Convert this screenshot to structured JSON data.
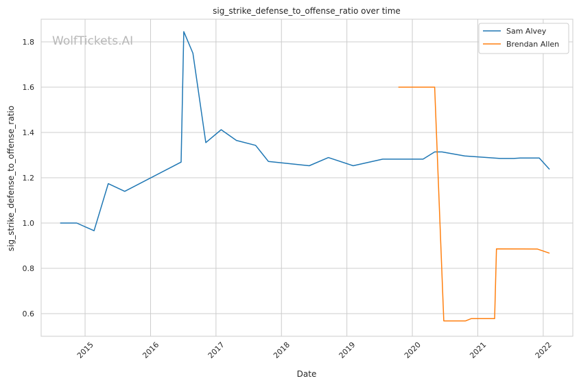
{
  "watermark": "WolfTickets.AI",
  "chart_data": {
    "type": "line",
    "title": "sig_strike_defense_to_offense_ratio over time",
    "xlabel": "Date",
    "ylabel": "sig_strike_defense_to_offense_ratio",
    "x_ticks": [
      "2015",
      "2016",
      "2017",
      "2018",
      "2019",
      "2020",
      "2021",
      "2022"
    ],
    "y_ticks": [
      "0.6",
      "0.8",
      "1.0",
      "1.2",
      "1.4",
      "1.6",
      "1.8"
    ],
    "xlim": [
      "2014-05-01",
      "2022-06-15"
    ],
    "ylim": [
      0.5,
      1.9
    ],
    "grid": true,
    "legend_position": "top-right",
    "series": [
      {
        "name": "Sam Alvey",
        "color": "#1f77b4",
        "points": [
          [
            "2014-08-15",
            1.0
          ],
          [
            "2014-11-15",
            1.0
          ],
          [
            "2015-02-20",
            0.966
          ],
          [
            "2015-05-10",
            1.174
          ],
          [
            "2015-08-10",
            1.14
          ],
          [
            "2016-06-20",
            1.269
          ],
          [
            "2016-07-05",
            1.845
          ],
          [
            "2016-08-25",
            1.75
          ],
          [
            "2016-11-05",
            1.355
          ],
          [
            "2017-01-30",
            1.412
          ],
          [
            "2017-04-25",
            1.365
          ],
          [
            "2017-08-10",
            1.343
          ],
          [
            "2017-10-20",
            1.272
          ],
          [
            "2018-06-05",
            1.253
          ],
          [
            "2018-09-20",
            1.289
          ],
          [
            "2019-02-05",
            1.253
          ],
          [
            "2019-07-20",
            1.282
          ],
          [
            "2020-03-01",
            1.282
          ],
          [
            "2020-05-05",
            1.314
          ],
          [
            "2020-06-15",
            1.314
          ],
          [
            "2020-10-20",
            1.296
          ],
          [
            "2021-05-05",
            1.285
          ],
          [
            "2021-07-20",
            1.285
          ],
          [
            "2021-08-25",
            1.287
          ],
          [
            "2021-12-10",
            1.287
          ],
          [
            "2022-02-05",
            1.237
          ]
        ]
      },
      {
        "name": "Brendan Allen",
        "color": "#ff7f0e",
        "points": [
          [
            "2019-10-15",
            1.6
          ],
          [
            "2020-05-05",
            1.6
          ],
          [
            "2020-06-25",
            0.568
          ],
          [
            "2020-10-25",
            0.568
          ],
          [
            "2020-11-25",
            0.578
          ],
          [
            "2021-04-05",
            0.578
          ],
          [
            "2021-04-15",
            0.886
          ],
          [
            "2021-11-30",
            0.885
          ],
          [
            "2022-02-05",
            0.867
          ]
        ]
      }
    ]
  }
}
